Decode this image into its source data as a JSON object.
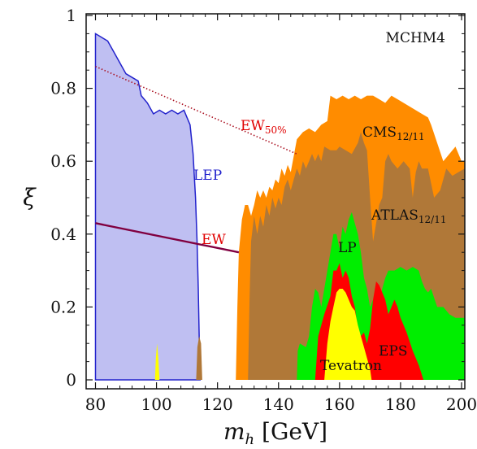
{
  "chart_data": {
    "type": "area",
    "title": "",
    "corner_label": "MCHM4",
    "xlabel": {
      "main": "m",
      "sub": "h",
      "rest": " [GeV]"
    },
    "ylabel": "ξ",
    "xlim": [
      80,
      202
    ],
    "ylim": [
      0,
      1
    ],
    "xticks": [
      80,
      100,
      120,
      140,
      160,
      180,
      200
    ],
    "yticks": [
      0,
      0.2,
      0.4,
      0.6,
      0.8,
      1
    ],
    "ytick_labels": [
      "0",
      "0.2",
      "0.4",
      "0.6",
      "0.8",
      "1"
    ],
    "grid": false,
    "regions": [
      {
        "id": "lep",
        "label": "LEP",
        "fill": "#bfbff2",
        "stroke": "#2222cc",
        "points": [
          [
            80,
            0
          ],
          [
            80,
            0.95
          ],
          [
            82,
            0.94
          ],
          [
            84,
            0.93
          ],
          [
            86,
            0.9
          ],
          [
            88,
            0.87
          ],
          [
            90,
            0.84
          ],
          [
            92,
            0.83
          ],
          [
            94,
            0.82
          ],
          [
            95,
            0.78
          ],
          [
            97,
            0.76
          ],
          [
            99,
            0.73
          ],
          [
            101,
            0.74
          ],
          [
            103,
            0.73
          ],
          [
            105,
            0.74
          ],
          [
            107,
            0.73
          ],
          [
            109,
            0.74
          ],
          [
            110,
            0.72
          ],
          [
            111,
            0.7
          ],
          [
            112,
            0.62
          ],
          [
            112.8,
            0.5
          ],
          [
            113.3,
            0.38
          ],
          [
            113.7,
            0.25
          ],
          [
            114,
            0.12
          ],
          [
            114.3,
            0
          ]
        ]
      },
      {
        "id": "cms",
        "label": "CMS",
        "label_sub": "12/11",
        "fill": "#ff8c00",
        "points": [
          [
            126,
            0
          ],
          [
            126.5,
            0.2
          ],
          [
            127,
            0.35
          ],
          [
            128,
            0.44
          ],
          [
            129,
            0.48
          ],
          [
            130,
            0.48
          ],
          [
            131,
            0.45
          ],
          [
            132,
            0.48
          ],
          [
            133,
            0.52
          ],
          [
            134,
            0.5
          ],
          [
            135,
            0.52
          ],
          [
            136,
            0.5
          ],
          [
            137,
            0.53
          ],
          [
            138,
            0.52
          ],
          [
            139,
            0.55
          ],
          [
            140,
            0.54
          ],
          [
            141,
            0.58
          ],
          [
            142,
            0.56
          ],
          [
            143,
            0.59
          ],
          [
            144,
            0.57
          ],
          [
            146,
            0.66
          ],
          [
            148,
            0.68
          ],
          [
            150,
            0.69
          ],
          [
            152,
            0.68
          ],
          [
            154,
            0.7
          ],
          [
            156,
            0.71
          ],
          [
            157,
            0.78
          ],
          [
            159,
            0.77
          ],
          [
            161,
            0.78
          ],
          [
            163,
            0.77
          ],
          [
            165,
            0.78
          ],
          [
            167,
            0.77
          ],
          [
            169,
            0.78
          ],
          [
            171,
            0.78
          ],
          [
            173,
            0.77
          ],
          [
            175,
            0.76
          ],
          [
            177,
            0.78
          ],
          [
            179,
            0.77
          ],
          [
            181,
            0.76
          ],
          [
            183,
            0.75
          ],
          [
            185,
            0.74
          ],
          [
            187,
            0.73
          ],
          [
            189,
            0.72
          ],
          [
            190,
            0.7
          ],
          [
            192,
            0.65
          ],
          [
            194,
            0.6
          ],
          [
            196,
            0.62
          ],
          [
            198,
            0.64
          ],
          [
            200,
            0.6
          ],
          [
            201,
            0.6
          ],
          [
            201,
            0
          ]
        ]
      },
      {
        "id": "atlas",
        "label": "ATLAS",
        "label_sub": "12/11",
        "fill": "#b07838",
        "points": [
          [
            130,
            0
          ],
          [
            130.5,
            0.22
          ],
          [
            131,
            0.38
          ],
          [
            132,
            0.45
          ],
          [
            133,
            0.4
          ],
          [
            134,
            0.45
          ],
          [
            135,
            0.42
          ],
          [
            136,
            0.48
          ],
          [
            137,
            0.45
          ],
          [
            138,
            0.5
          ],
          [
            139,
            0.47
          ],
          [
            140,
            0.5
          ],
          [
            141,
            0.48
          ],
          [
            142,
            0.53
          ],
          [
            143,
            0.55
          ],
          [
            144,
            0.52
          ],
          [
            145,
            0.55
          ],
          [
            146,
            0.58
          ],
          [
            147,
            0.56
          ],
          [
            148,
            0.6
          ],
          [
            149,
            0.58
          ],
          [
            150,
            0.6
          ],
          [
            151,
            0.62
          ],
          [
            152,
            0.6
          ],
          [
            153,
            0.62
          ],
          [
            154,
            0.6
          ],
          [
            155,
            0.64
          ],
          [
            157,
            0.63
          ],
          [
            159,
            0.63
          ],
          [
            160,
            0.64
          ],
          [
            162,
            0.63
          ],
          [
            164,
            0.62
          ],
          [
            166,
            0.65
          ],
          [
            167,
            0.68
          ],
          [
            168,
            0.65
          ],
          [
            169,
            0.63
          ],
          [
            170,
            0.5
          ],
          [
            171,
            0.38
          ],
          [
            172,
            0.43
          ],
          [
            173,
            0.48
          ],
          [
            174,
            0.5
          ],
          [
            175,
            0.6
          ],
          [
            176,
            0.62
          ],
          [
            177,
            0.6
          ],
          [
            179,
            0.58
          ],
          [
            181,
            0.6
          ],
          [
            183,
            0.58
          ],
          [
            184,
            0.5
          ],
          [
            185,
            0.57
          ],
          [
            186,
            0.6
          ],
          [
            187,
            0.58
          ],
          [
            189,
            0.58
          ],
          [
            191,
            0.5
          ],
          [
            193,
            0.52
          ],
          [
            195,
            0.58
          ],
          [
            197,
            0.56
          ],
          [
            199,
            0.57
          ],
          [
            201,
            0.58
          ],
          [
            201,
            0
          ]
        ]
      },
      {
        "id": "lep2",
        "label": "",
        "fill": "#b07838",
        "points": [
          [
            113,
            0
          ],
          [
            113.4,
            0.09
          ],
          [
            114,
            0.12
          ],
          [
            114.6,
            0.1
          ],
          [
            115,
            0
          ]
        ]
      },
      {
        "id": "lp",
        "label": "LP",
        "fill": "#00ee00",
        "points": [
          [
            146,
            0
          ],
          [
            146.3,
            0.08
          ],
          [
            147,
            0.1
          ],
          [
            149,
            0.09
          ],
          [
            150,
            0.12
          ],
          [
            151,
            0.2
          ],
          [
            152,
            0.25
          ],
          [
            153,
            0.24
          ],
          [
            154,
            0.2
          ],
          [
            155,
            0.25
          ],
          [
            156,
            0.3
          ],
          [
            157,
            0.35
          ],
          [
            158,
            0.4
          ],
          [
            159,
            0.4
          ],
          [
            160,
            0.36
          ],
          [
            161,
            0.42
          ],
          [
            162,
            0.4
          ],
          [
            163,
            0.44
          ],
          [
            164,
            0.46
          ],
          [
            165,
            0.43
          ],
          [
            166,
            0.4
          ],
          [
            167,
            0.35
          ],
          [
            168,
            0.28
          ],
          [
            169,
            0.25
          ],
          [
            170,
            0.2
          ],
          [
            171,
            0.22
          ],
          [
            172,
            0.18
          ],
          [
            173,
            0.2
          ],
          [
            174,
            0.25
          ],
          [
            175,
            0.28
          ],
          [
            176,
            0.3
          ],
          [
            178,
            0.3
          ],
          [
            180,
            0.31
          ],
          [
            182,
            0.3
          ],
          [
            184,
            0.31
          ],
          [
            186,
            0.3
          ],
          [
            187,
            0.27
          ],
          [
            188,
            0.25
          ],
          [
            189,
            0.24
          ],
          [
            190,
            0.25
          ],
          [
            192,
            0.2
          ],
          [
            194,
            0.2
          ],
          [
            196,
            0.18
          ],
          [
            198,
            0.17
          ],
          [
            200,
            0.17
          ],
          [
            201,
            0.17
          ],
          [
            201,
            0
          ]
        ]
      },
      {
        "id": "eps",
        "label": "EPS",
        "fill": "#ff0000",
        "points": [
          [
            152,
            0
          ],
          [
            153,
            0.12
          ],
          [
            155,
            0.18
          ],
          [
            157,
            0.23
          ],
          [
            158,
            0.3
          ],
          [
            159,
            0.3
          ],
          [
            160,
            0.32
          ],
          [
            161,
            0.28
          ],
          [
            162,
            0.3
          ],
          [
            163,
            0.28
          ],
          [
            164,
            0.23
          ],
          [
            165,
            0.2
          ],
          [
            166,
            0.14
          ],
          [
            167,
            0.12
          ],
          [
            168,
            0.13
          ],
          [
            169,
            0.1
          ],
          [
            170,
            0.14
          ],
          [
            171,
            0.22
          ],
          [
            172,
            0.27
          ],
          [
            173,
            0.26
          ],
          [
            174,
            0.24
          ],
          [
            175,
            0.22
          ],
          [
            176,
            0.18
          ],
          [
            177,
            0.2
          ],
          [
            178,
            0.22
          ],
          [
            179,
            0.2
          ],
          [
            180,
            0.17
          ],
          [
            182,
            0.13
          ],
          [
            184,
            0.08
          ],
          [
            186,
            0.04
          ],
          [
            187.5,
            0
          ]
        ]
      },
      {
        "id": "tevatron",
        "label": "Tevatron",
        "fill": "#ffff00",
        "points": [
          [
            155,
            0
          ],
          [
            156,
            0.1
          ],
          [
            157,
            0.16
          ],
          [
            158,
            0.2
          ],
          [
            159,
            0.24
          ],
          [
            160,
            0.25
          ],
          [
            161,
            0.25
          ],
          [
            162,
            0.24
          ],
          [
            163,
            0.22
          ],
          [
            164,
            0.2
          ],
          [
            165,
            0.19
          ],
          [
            166,
            0.15
          ],
          [
            167,
            0.12
          ],
          [
            168,
            0.09
          ],
          [
            169,
            0.06
          ],
          [
            170,
            0.03
          ],
          [
            170.5,
            0
          ]
        ]
      },
      {
        "id": "tev2",
        "label": "",
        "fill": "#ffff00",
        "points": [
          [
            99.5,
            0
          ],
          [
            99.8,
            0.06
          ],
          [
            100.2,
            0.1
          ],
          [
            100.6,
            0.06
          ],
          [
            101,
            0
          ]
        ]
      }
    ],
    "lines": [
      {
        "id": "ew",
        "label": "EW",
        "color": "#800040",
        "style": "solid",
        "points": [
          [
            80,
            0.43
          ],
          [
            127,
            0.35
          ]
        ]
      },
      {
        "id": "ew50",
        "label": "EW",
        "label_sub": "50%",
        "color": "#aa1020",
        "style": "dotted",
        "points": [
          [
            80,
            0.86
          ],
          [
            146,
            0.62
          ]
        ]
      }
    ],
    "annotations": [
      {
        "region": "lep",
        "at": [
          133.5,
          0.58
        ],
        "color": "#2222cc"
      },
      {
        "region": "ew",
        "at": [
          129,
          0.39
        ],
        "color": "#e00000"
      },
      {
        "region": "ew50",
        "at": [
          139,
          0.67
        ],
        "color": "#e00000"
      },
      {
        "region": "cms",
        "at": [
          144,
          0.68
        ],
        "color": "#111111"
      },
      {
        "region": "atlas",
        "at": [
          140,
          0.44
        ],
        "color": "#111111"
      },
      {
        "region": "lp",
        "at": [
          144,
          0.37
        ],
        "color": "#111111"
      },
      {
        "region": "eps",
        "at": [
          145,
          0.09
        ],
        "color": "#111111"
      },
      {
        "region": "tevatron",
        "at": [
          141,
          0.04
        ],
        "color": "#111111"
      }
    ]
  }
}
